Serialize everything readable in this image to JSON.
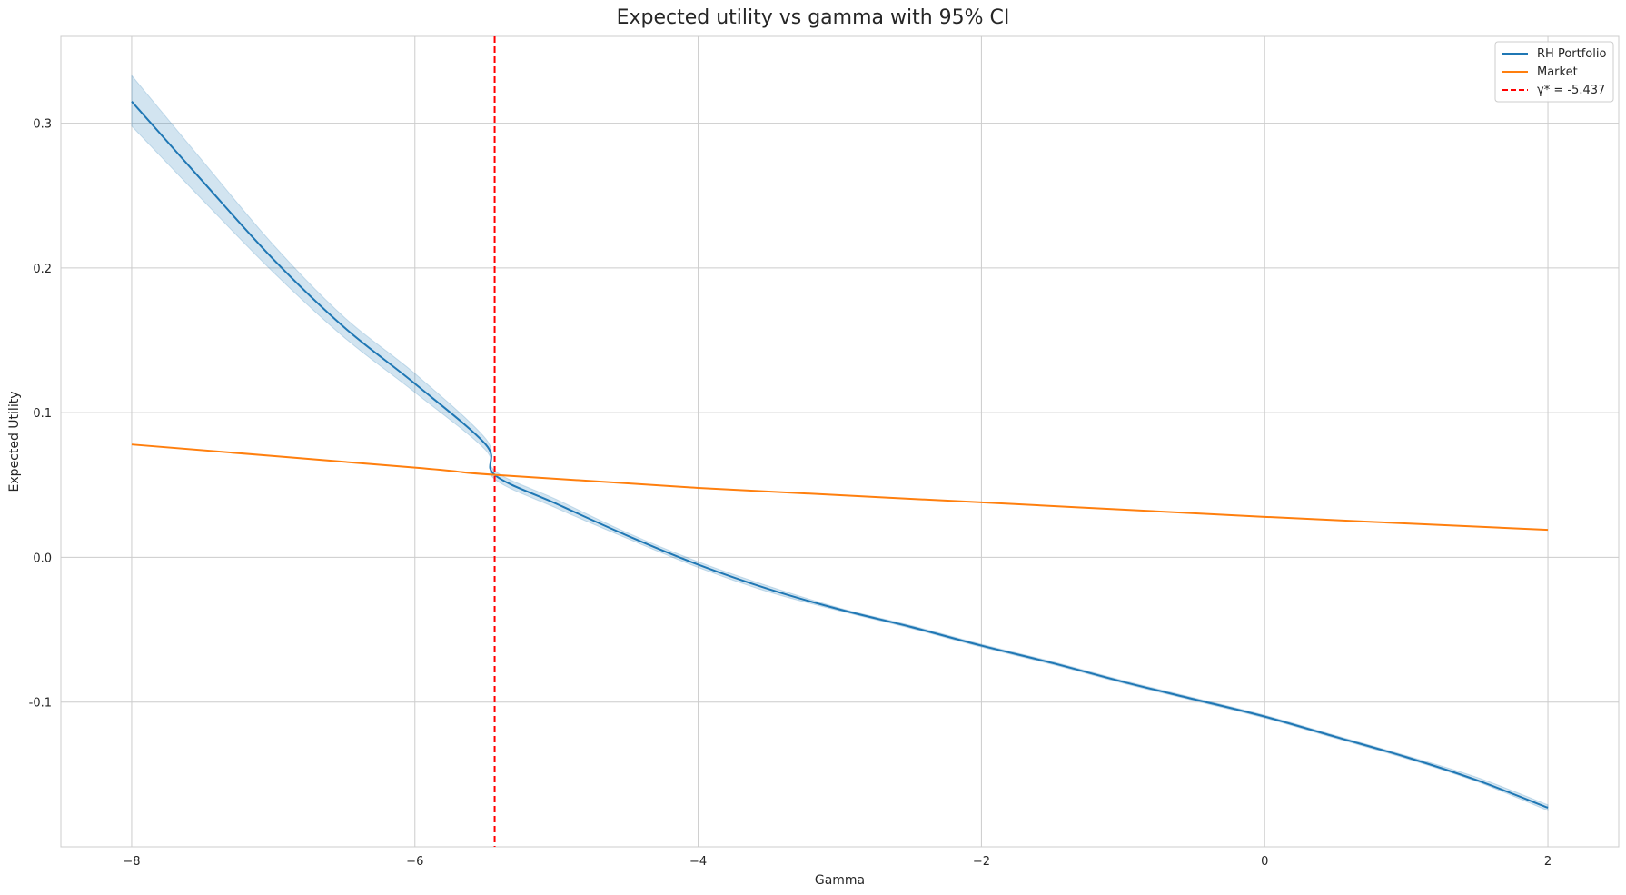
{
  "chart_data": {
    "type": "line",
    "title": "Expected utility vs gamma with 95% CI",
    "xlabel": "Gamma",
    "ylabel": "Expected Utility",
    "xlim": [
      -8.5,
      2.5
    ],
    "ylim": [
      -0.2,
      0.36
    ],
    "x_ticks": [
      -8,
      -6,
      -4,
      -2,
      0,
      2
    ],
    "x_tick_labels": [
      "−8",
      "−6",
      "−4",
      "−2",
      "0",
      "2"
    ],
    "y_ticks": [
      -0.1,
      0.0,
      0.1,
      0.2,
      0.3
    ],
    "y_tick_labels": [
      "-0.1",
      "0.0",
      "0.1",
      "0.2",
      "0.3"
    ],
    "grid": true,
    "legend_position": "top-right",
    "series": [
      {
        "name": "RH Portfolio",
        "color": "#1f77b4",
        "x": [
          -8,
          -7.5,
          -7,
          -6.5,
          -6,
          -5.5,
          -5.437,
          -5,
          -4.5,
          -4,
          -3.5,
          -3,
          -2.5,
          -2,
          -1.5,
          -1,
          -0.5,
          0,
          0.5,
          1,
          1.5,
          2
        ],
        "y": [
          0.315,
          0.26,
          0.206,
          0.159,
          0.12,
          0.078,
          0.057,
          0.037,
          0.015,
          -0.005,
          -0.022,
          -0.036,
          -0.048,
          -0.061,
          -0.073,
          -0.086,
          -0.098,
          -0.11,
          -0.124,
          -0.138,
          -0.154,
          -0.173
        ],
        "ci_lower": [
          0.298,
          0.247,
          0.197,
          0.152,
          0.114,
          0.074,
          0.054,
          0.034,
          0.013,
          -0.007,
          -0.024,
          -0.037,
          -0.049,
          -0.062,
          -0.074,
          -0.087,
          -0.099,
          -0.111,
          -0.125,
          -0.139,
          -0.155,
          -0.175
        ],
        "ci_upper": [
          0.333,
          0.274,
          0.216,
          0.166,
          0.127,
          0.082,
          0.06,
          0.04,
          0.017,
          -0.003,
          -0.02,
          -0.035,
          -0.047,
          -0.06,
          -0.072,
          -0.085,
          -0.097,
          -0.109,
          -0.123,
          -0.137,
          -0.152,
          -0.171
        ]
      },
      {
        "name": "Market",
        "color": "#ff7f0e",
        "x": [
          -8,
          -6,
          -5.437,
          -4,
          -2,
          0,
          2
        ],
        "y": [
          0.078,
          0.062,
          0.057,
          0.048,
          0.038,
          0.028,
          0.019
        ]
      }
    ],
    "vline": {
      "name": "γ* = -5.437",
      "x": -5.437,
      "color": "#ff0000",
      "style": "dashed"
    },
    "ci_fill_color": "#1f77b4"
  }
}
